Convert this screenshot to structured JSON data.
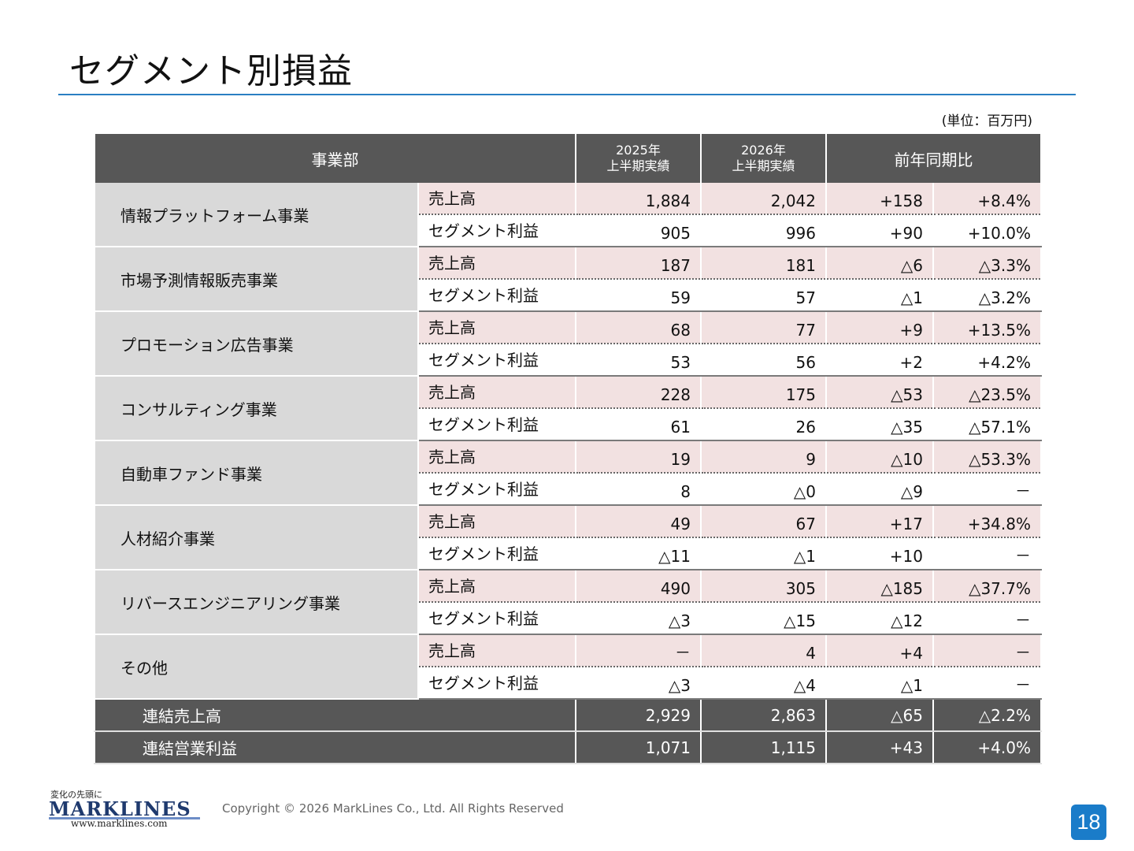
{
  "title": "セグメント別損益",
  "unit": "(単位：百万円)",
  "header": {
    "department": "事業部",
    "y2025_line1": "2025年",
    "y2025_line2": "上半期実績",
    "y2026_line1": "2026年",
    "y2026_line2": "上半期実績",
    "yoy": "前年同期比"
  },
  "segments": [
    {
      "name": "情報プラットフォーム事業",
      "rev": {
        "label": "売上高",
        "v2025": "1,884",
        "v2026": "2,042",
        "diff": "+158",
        "pct": "+8.4%"
      },
      "profit": {
        "label": "セグメント利益",
        "v2025": "905",
        "v2026": "996",
        "diff": "+90",
        "pct": "+10.0%"
      }
    },
    {
      "name": "市場予測情報販売事業",
      "rev": {
        "label": "売上高",
        "v2025": "187",
        "v2026": "181",
        "diff": "△6",
        "pct": "△3.3%"
      },
      "profit": {
        "label": "セグメント利益",
        "v2025": "59",
        "v2026": "57",
        "diff": "△1",
        "pct": "△3.2%"
      }
    },
    {
      "name": "プロモーション広告事業",
      "rev": {
        "label": "売上高",
        "v2025": "68",
        "v2026": "77",
        "diff": "+9",
        "pct": "+13.5%"
      },
      "profit": {
        "label": "セグメント利益",
        "v2025": "53",
        "v2026": "56",
        "diff": "+2",
        "pct": "+4.2%"
      }
    },
    {
      "name": "コンサルティング事業",
      "rev": {
        "label": "売上高",
        "v2025": "228",
        "v2026": "175",
        "diff": "△53",
        "pct": "△23.5%"
      },
      "profit": {
        "label": "セグメント利益",
        "v2025": "61",
        "v2026": "26",
        "diff": "△35",
        "pct": "△57.1%"
      }
    },
    {
      "name": "自動車ファンド事業",
      "rev": {
        "label": "売上高",
        "v2025": "19",
        "v2026": "9",
        "diff": "△10",
        "pct": "△53.3%"
      },
      "profit": {
        "label": "セグメント利益",
        "v2025": "8",
        "v2026": "△0",
        "diff": "△9",
        "pct": "－"
      }
    },
    {
      "name": "人材紹介事業",
      "rev": {
        "label": "売上高",
        "v2025": "49",
        "v2026": "67",
        "diff": "+17",
        "pct": "+34.8%"
      },
      "profit": {
        "label": "セグメント利益",
        "v2025": "△11",
        "v2026": "△1",
        "diff": "+10",
        "pct": "－"
      }
    },
    {
      "name": "リバースエンジニアリング事業",
      "rev": {
        "label": "売上高",
        "v2025": "490",
        "v2026": "305",
        "diff": "△185",
        "pct": "△37.7%"
      },
      "profit": {
        "label": "セグメント利益",
        "v2025": "△3",
        "v2026": "△15",
        "diff": "△12",
        "pct": "－"
      }
    },
    {
      "name": "その他",
      "rev": {
        "label": "売上高",
        "v2025": "－",
        "v2026": "4",
        "diff": "+4",
        "pct": "－"
      },
      "profit": {
        "label": "セグメント利益",
        "v2025": "△3",
        "v2026": "△4",
        "diff": "△1",
        "pct": "－"
      }
    }
  ],
  "totals": [
    {
      "label": "連結売上高",
      "v2025": "2,929",
      "v2026": "2,863",
      "diff": "△65",
      "pct": "△2.2%"
    },
    {
      "label": "連結営業利益",
      "v2025": "1,071",
      "v2026": "1,115",
      "diff": "+43",
      "pct": "+4.0%"
    }
  ],
  "footer": {
    "logo_tagline": "変化の先頭に",
    "logo_word": "MARKLINES",
    "logo_url": "www.marklines.com",
    "copyright": "Copyright © 2026 MarkLines Co., Ltd. All Rights Reserved",
    "page_number": "18"
  }
}
